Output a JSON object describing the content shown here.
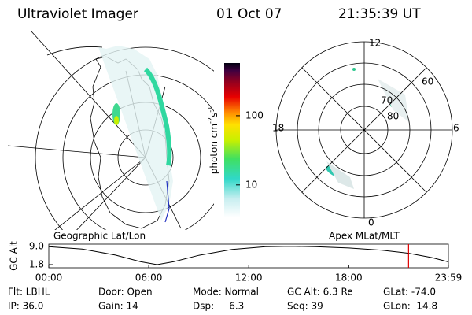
{
  "header": {
    "instrument": "Ultraviolet Imager",
    "date": "01 Oct 07",
    "time": "21:35:39 UT"
  },
  "colorbar": {
    "label": "photon cm",
    "exp1": "-2",
    "unit2": "s",
    "exp2": "-1",
    "scale": "log",
    "lim": [
      3.4,
      577
    ],
    "ticks": [
      10,
      100
    ]
  },
  "polar": {
    "mlt_labels": {
      "top": "12",
      "left": "18",
      "right": "6",
      "bottom": "0"
    },
    "lat_labels": [
      "60",
      "70",
      "80"
    ]
  },
  "altitude": {
    "left_label": "Geographic Lat/Lon",
    "right_label": "Apex MLat/MLT",
    "ylabel": "GC Alt",
    "ylim": [
      0.55,
      9.94
    ],
    "yticks": [
      {
        "value": 9.0,
        "label": "9.0"
      },
      {
        "value": 1.8,
        "label": "1.8"
      }
    ],
    "xlim": [
      0,
      23.98
    ],
    "xticks": [
      {
        "value": 0,
        "label": "00:00"
      },
      {
        "value": 6,
        "label": "06:00"
      },
      {
        "value": 12,
        "label": "12:00"
      },
      {
        "value": 18,
        "label": "18:00"
      },
      {
        "value": 23.98,
        "label": "23:59"
      }
    ],
    "x": [
      0,
      2,
      4,
      5.5,
      6.5,
      7.5,
      9,
      11,
      13,
      14.5,
      16,
      18,
      20,
      21.6,
      23,
      23.98
    ],
    "values": [
      8.9,
      8.0,
      5.6,
      3.0,
      1.8,
      3.0,
      5.5,
      7.8,
      8.9,
      9.1,
      8.9,
      8.4,
      7.5,
      6.3,
      4.6,
      2.9
    ],
    "marker": 21.59
  },
  "status": [
    [
      "Flt: LBHL",
      "Door: Open",
      "Mode: Normal",
      "GC Alt: 6.3 Re",
      "GLat: -74.0"
    ],
    [
      "IP: 36.0",
      "Gain: 14",
      "Dsp:     6.3",
      "Seq: 39",
      "GLon:  14.8"
    ]
  ]
}
